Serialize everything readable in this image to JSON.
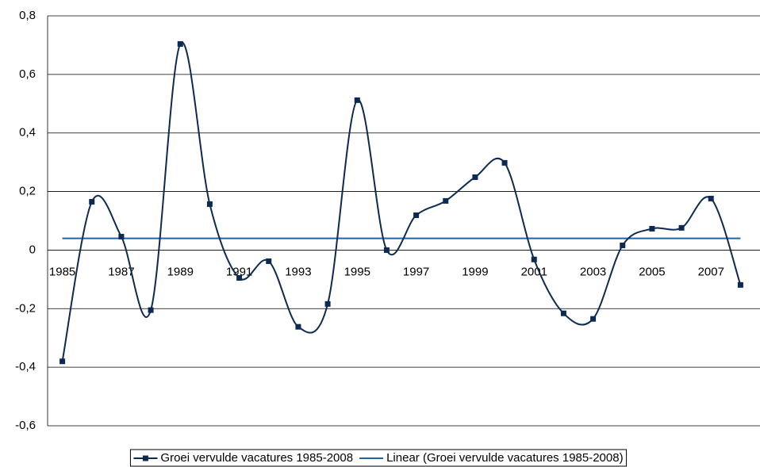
{
  "chart_data": {
    "type": "line",
    "categories": [
      "1985",
      null,
      "1987",
      null,
      "1989",
      null,
      "1991",
      null,
      "1993",
      null,
      "1995",
      null,
      "1997",
      null,
      "1999",
      null,
      "2001",
      null,
      "2003",
      null,
      "2005",
      null,
      "2007",
      null
    ],
    "series": [
      {
        "name": "Groei vervulde vacatures 1985-2008",
        "color": "#0d2a52",
        "smooth": true,
        "marker": "square",
        "values": [
          -0.38,
          0.165,
          0.046,
          -0.205,
          0.704,
          0.157,
          -0.095,
          -0.038,
          -0.262,
          -0.184,
          0.512,
          0.0,
          0.119,
          0.168,
          0.249,
          0.298,
          -0.032,
          -0.216,
          -0.235,
          0.016,
          0.073,
          0.076,
          0.176,
          -0.119
        ]
      },
      {
        "name": "Linear (Groei vervulde vacatures 1985-2008)",
        "color": "#1f64a8",
        "smooth": false,
        "marker": "none",
        "values": [
          0.04,
          0.04,
          0.04,
          0.04,
          0.04,
          0.04,
          0.04,
          0.04,
          0.04,
          0.04,
          0.04,
          0.04,
          0.04,
          0.04,
          0.04,
          0.04,
          0.04,
          0.04,
          0.04,
          0.04,
          0.04,
          0.04,
          0.04,
          0.04
        ]
      }
    ],
    "ylim": [
      -0.6,
      0.8
    ],
    "yticks": [
      {
        "value": -0.6,
        "label": "-0,6"
      },
      {
        "value": -0.4,
        "label": "-0,4"
      },
      {
        "value": -0.2,
        "label": "-0,2"
      },
      0,
      {
        "value": 0.2,
        "label": "0,2"
      },
      {
        "value": 0.4,
        "label": "0,4"
      },
      {
        "value": 0.6,
        "label": "0,6"
      },
      {
        "value": 0.8,
        "label": "0,8"
      }
    ],
    "grid": true,
    "legend": "bottom"
  }
}
